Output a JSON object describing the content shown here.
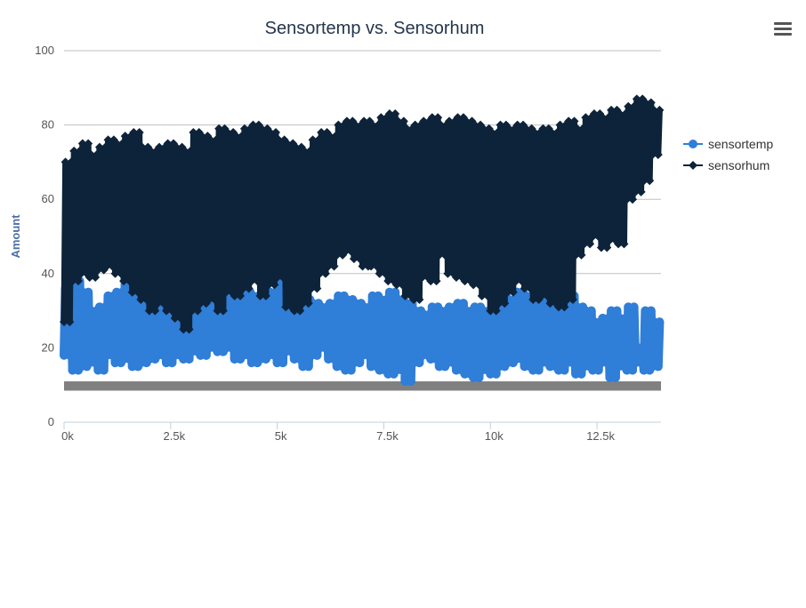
{
  "chart_data": {
    "type": "line",
    "title": "Sensortemp vs. Sensorhum",
    "xlabel": "",
    "ylabel": "Amount",
    "xlim": [
      0,
      14000
    ],
    "ylim": [
      0,
      100
    ],
    "x_ticks": [
      "0k",
      "2.5k",
      "5k",
      "7.5k",
      "10k",
      "12.5k"
    ],
    "y_ticks": [
      "0",
      "20",
      "40",
      "60",
      "80",
      "100"
    ],
    "grid": true,
    "legend_position": "right",
    "series": [
      {
        "name": "sensortemp",
        "color": "#2f7ed8",
        "marker": "circle",
        "x": [
          0,
          200,
          400,
          600,
          800,
          1000,
          1200,
          1400,
          1600,
          1800,
          2000,
          2200,
          2400,
          2600,
          2800,
          3000,
          3200,
          3400,
          3600,
          3800,
          4000,
          4200,
          4400,
          4600,
          4800,
          5000,
          5200,
          5400,
          5600,
          5800,
          6000,
          6200,
          6400,
          6600,
          6800,
          7000,
          7200,
          7400,
          7600,
          7800,
          8000,
          8200,
          8400,
          8600,
          8800,
          9000,
          9200,
          9400,
          9600,
          9800,
          10000,
          10200,
          10400,
          10600,
          10800,
          11000,
          11200,
          11400,
          11600,
          11800,
          12000,
          12200,
          12400,
          12600,
          12800,
          13000,
          13200,
          13400,
          13600,
          13800
        ],
        "low": [
          18,
          14,
          15,
          16,
          14,
          18,
          16,
          17,
          15,
          16,
          17,
          18,
          16,
          18,
          17,
          19,
          18,
          20,
          19,
          20,
          17,
          18,
          16,
          17,
          18,
          16,
          19,
          17,
          15,
          18,
          20,
          17,
          15,
          14,
          16,
          18,
          15,
          14,
          13,
          14,
          11,
          16,
          18,
          17,
          15,
          16,
          14,
          13,
          12,
          14,
          13,
          15,
          16,
          17,
          15,
          14,
          16,
          15,
          14,
          16,
          13,
          15,
          14,
          16,
          12,
          15,
          14,
          16,
          14,
          15
        ],
        "high": [
          36,
          38,
          35,
          30,
          31,
          34,
          35,
          39,
          40,
          38,
          36,
          33,
          35,
          34,
          37,
          38,
          39,
          38,
          37,
          36,
          33,
          35,
          34,
          33,
          35,
          39,
          35,
          36,
          33,
          32,
          31,
          32,
          34,
          33,
          32,
          31,
          34,
          33,
          35,
          33,
          32,
          30,
          29,
          31,
          30,
          31,
          32,
          30,
          31,
          30,
          36,
          34,
          33,
          35,
          34,
          36,
          33,
          34,
          33,
          34,
          31,
          30,
          27,
          28,
          30,
          28,
          31,
          20,
          30,
          27
        ]
      },
      {
        "name": "sensorhum",
        "color": "#0d233a",
        "marker": "diamond",
        "x": [
          0,
          200,
          400,
          600,
          800,
          1000,
          1200,
          1400,
          1600,
          1800,
          2000,
          2200,
          2400,
          2600,
          2800,
          3000,
          3200,
          3400,
          3600,
          3800,
          4000,
          4200,
          4400,
          4600,
          4800,
          5000,
          5200,
          5400,
          5600,
          5800,
          6000,
          6200,
          6400,
          6600,
          6800,
          7000,
          7200,
          7400,
          7600,
          7800,
          8000,
          8200,
          8400,
          8600,
          8800,
          9000,
          9200,
          9400,
          9600,
          9800,
          10000,
          10200,
          10400,
          10600,
          10800,
          11000,
          11200,
          11400,
          11600,
          11800,
          12000,
          12200,
          12400,
          12600,
          12800,
          13000,
          13200,
          13400,
          13600,
          13800
        ],
        "low": [
          27,
          38,
          40,
          39,
          41,
          42,
          40,
          38,
          35,
          33,
          30,
          32,
          30,
          28,
          25,
          30,
          32,
          33,
          30,
          35,
          34,
          36,
          38,
          34,
          37,
          39,
          31,
          30,
          32,
          36,
          40,
          42,
          45,
          46,
          44,
          42,
          42,
          40,
          38,
          37,
          34,
          33,
          39,
          38,
          45,
          40,
          39,
          38,
          37,
          34,
          30,
          32,
          35,
          38,
          36,
          33,
          34,
          32,
          31,
          33,
          45,
          48,
          50,
          47,
          49,
          48,
          60,
          62,
          65,
          72
        ],
        "high": [
          70,
          73,
          75,
          72,
          74,
          76,
          75,
          77,
          78,
          74,
          73,
          74,
          75,
          74,
          73,
          78,
          77,
          76,
          79,
          78,
          77,
          79,
          80,
          79,
          78,
          76,
          75,
          74,
          73,
          76,
          78,
          77,
          80,
          81,
          80,
          81,
          80,
          82,
          83,
          81,
          79,
          80,
          81,
          82,
          80,
          81,
          82,
          81,
          80,
          79,
          78,
          80,
          79,
          80,
          79,
          78,
          79,
          78,
          80,
          81,
          79,
          82,
          83,
          82,
          84,
          83,
          85,
          87,
          86,
          84
        ]
      }
    ],
    "plot_band": {
      "from": 8.5,
      "to": 11,
      "color": "#808080"
    }
  },
  "menu": {
    "icon": "hamburger-menu-icon"
  }
}
